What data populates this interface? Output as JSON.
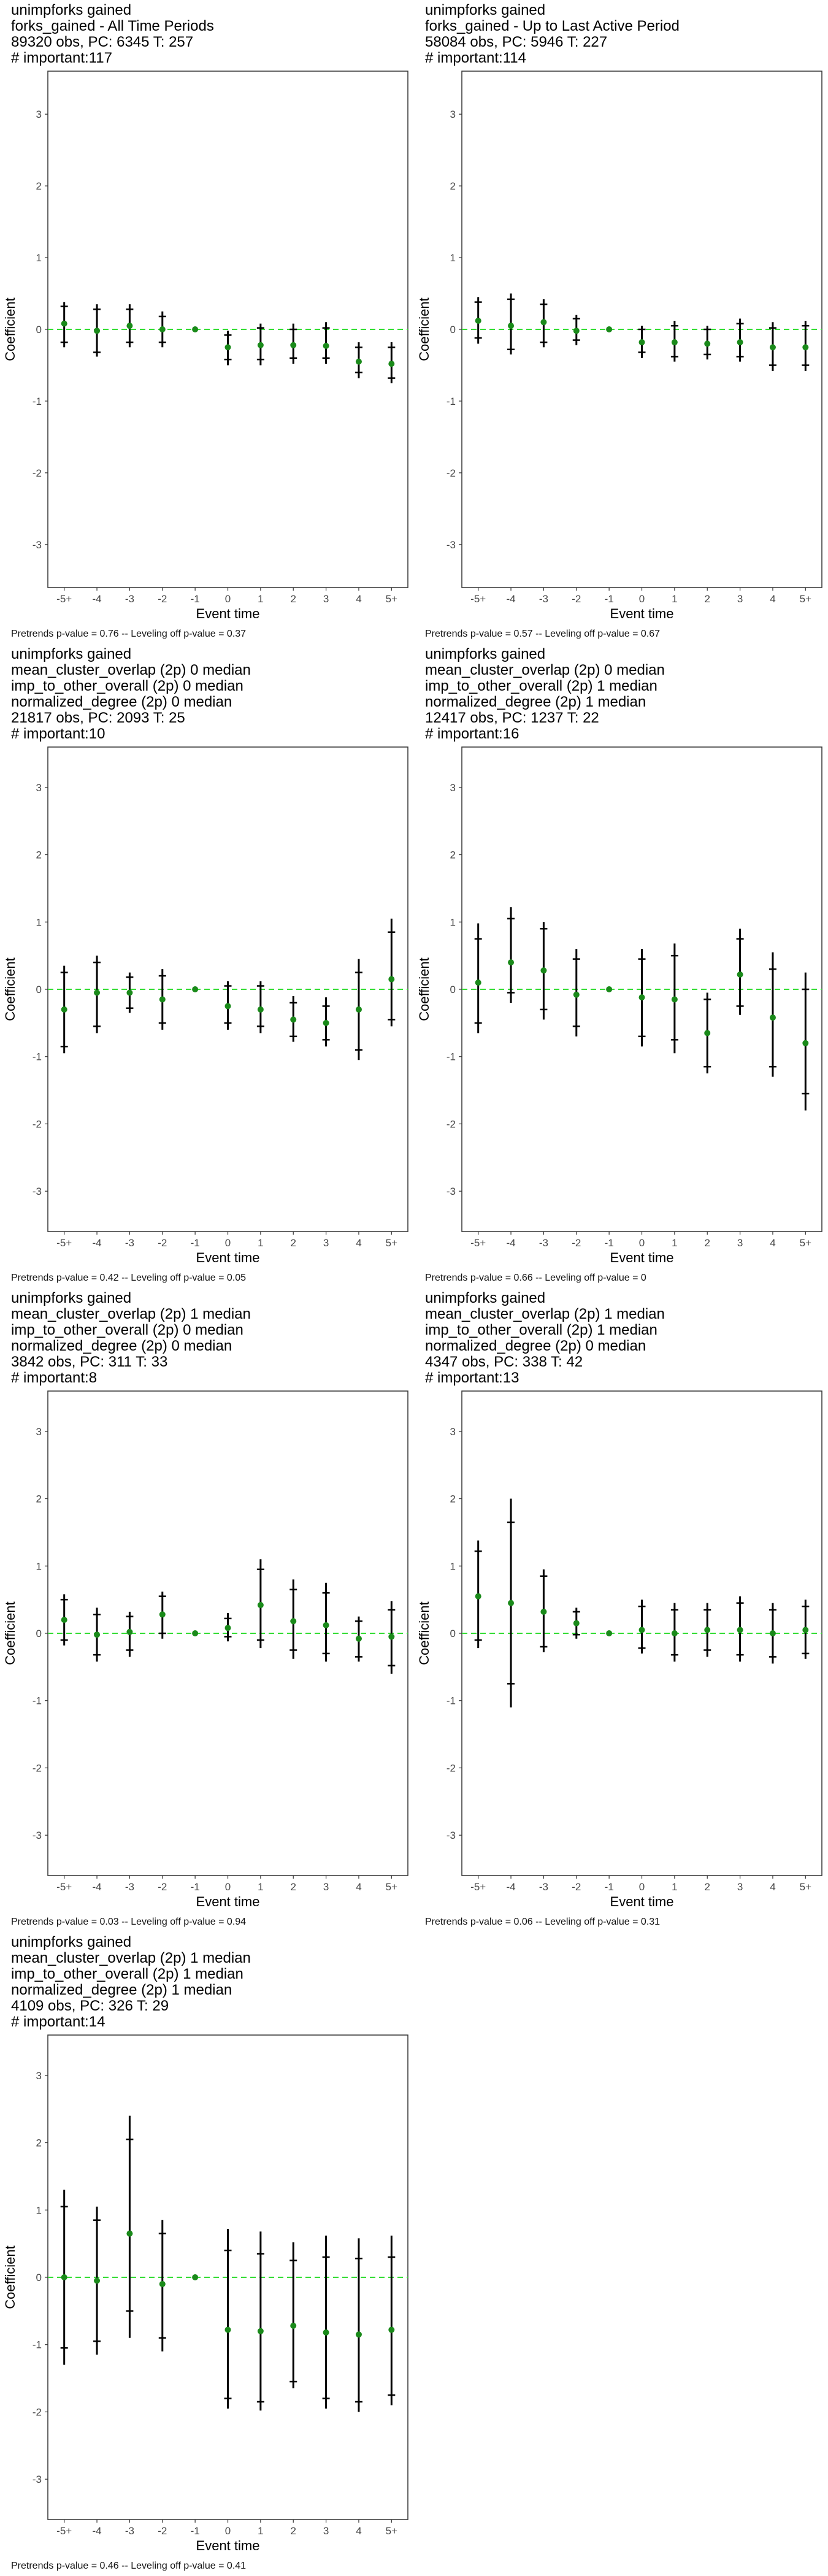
{
  "chart_data": [
    {
      "type": "scatter",
      "title_lines": [
        " unimpforks gained",
        "forks_gained - All Time Periods",
        "89320 obs, PC: 6345 T: 257",
        "# important:117"
      ],
      "footer": "Pretrends p-value = 0.76 -- Leveling off p-value = 0.37",
      "xlabel": "Event time",
      "ylabel": "Coefficient",
      "x_ticks": [
        "-5+",
        "-4",
        "-3",
        "-2",
        "-1",
        "0",
        "1",
        "2",
        "3",
        "4",
        "5+"
      ],
      "y_ticks": [
        "-3",
        "-2",
        "-1",
        "0",
        "1",
        "2",
        "3"
      ],
      "ylim": [
        -3.6,
        3.6
      ],
      "estimates": [
        0.08,
        -0.02,
        0.05,
        0.0,
        0.0,
        -0.25,
        -0.22,
        -0.22,
        -0.23,
        -0.45,
        -0.48
      ],
      "ci95": [
        [
          -0.25,
          0.38
        ],
        [
          -0.38,
          0.35
        ],
        [
          -0.25,
          0.35
        ],
        [
          -0.25,
          0.25
        ],
        [
          0,
          0
        ],
        [
          -0.5,
          -0.02
        ],
        [
          -0.5,
          0.08
        ],
        [
          -0.48,
          0.08
        ],
        [
          -0.48,
          0.1
        ],
        [
          -0.68,
          -0.18
        ],
        [
          -0.75,
          -0.18
        ]
      ],
      "ci90": [
        [
          -0.18,
          0.32
        ],
        [
          -0.32,
          0.28
        ],
        [
          -0.18,
          0.28
        ],
        [
          -0.18,
          0.18
        ],
        [
          0,
          0
        ],
        [
          -0.42,
          -0.08
        ],
        [
          -0.42,
          0.02
        ],
        [
          -0.4,
          0.0
        ],
        [
          -0.4,
          0.02
        ],
        [
          -0.6,
          -0.25
        ],
        [
          -0.68,
          -0.25
        ]
      ]
    },
    {
      "type": "scatter",
      "title_lines": [
        " unimpforks gained",
        "forks_gained - Up to Last Active Period",
        "58084 obs, PC: 5946 T: 227",
        "# important:114"
      ],
      "footer": "Pretrends p-value = 0.57 -- Leveling off p-value = 0.67",
      "xlabel": "Event time",
      "ylabel": "Coefficient",
      "x_ticks": [
        "-5+",
        "-4",
        "-3",
        "-2",
        "-1",
        "0",
        "1",
        "2",
        "3",
        "4",
        "5+"
      ],
      "y_ticks": [
        "-3",
        "-2",
        "-1",
        "0",
        "1",
        "2",
        "3"
      ],
      "ylim": [
        -3.6,
        3.6
      ],
      "estimates": [
        0.12,
        0.05,
        0.1,
        -0.02,
        0.0,
        -0.18,
        -0.18,
        -0.2,
        -0.18,
        -0.25,
        -0.25
      ],
      "ci95": [
        [
          -0.2,
          0.45
        ],
        [
          -0.35,
          0.5
        ],
        [
          -0.25,
          0.42
        ],
        [
          -0.22,
          0.2
        ],
        [
          0,
          0
        ],
        [
          -0.4,
          0.05
        ],
        [
          -0.45,
          0.12
        ],
        [
          -0.42,
          0.05
        ],
        [
          -0.45,
          0.15
        ],
        [
          -0.58,
          0.1
        ],
        [
          -0.58,
          0.12
        ]
      ],
      "ci90": [
        [
          -0.12,
          0.38
        ],
        [
          -0.28,
          0.42
        ],
        [
          -0.18,
          0.35
        ],
        [
          -0.15,
          0.15
        ],
        [
          0,
          0
        ],
        [
          -0.32,
          0.0
        ],
        [
          -0.38,
          0.05
        ],
        [
          -0.35,
          0.0
        ],
        [
          -0.38,
          0.08
        ],
        [
          -0.5,
          0.02
        ],
        [
          -0.5,
          0.05
        ]
      ]
    },
    {
      "type": "scatter",
      "title_lines": [
        " unimpforks gained",
        "mean_cluster_overlap (2p) 0 median",
        "imp_to_other_overall (2p) 0 median",
        "normalized_degree (2p) 0 median",
        "21817 obs, PC: 2093 T: 25",
        "# important:10"
      ],
      "footer": "Pretrends p-value = 0.42 -- Leveling off p-value = 0.05",
      "xlabel": "Event time",
      "ylabel": "Coefficient",
      "x_ticks": [
        "-5+",
        "-4",
        "-3",
        "-2",
        "-1",
        "0",
        "1",
        "2",
        "3",
        "4",
        "5+"
      ],
      "y_ticks": [
        "-3",
        "-2",
        "-1",
        "0",
        "1",
        "2",
        "3"
      ],
      "ylim": [
        -3.6,
        3.6
      ],
      "estimates": [
        -0.3,
        -0.05,
        -0.05,
        -0.15,
        0.0,
        -0.25,
        -0.3,
        -0.45,
        -0.5,
        -0.3,
        0.15
      ],
      "ci95": [
        [
          -0.95,
          0.35
        ],
        [
          -0.65,
          0.5
        ],
        [
          -0.35,
          0.25
        ],
        [
          -0.6,
          0.3
        ],
        [
          0,
          0
        ],
        [
          -0.6,
          0.12
        ],
        [
          -0.65,
          0.12
        ],
        [
          -0.78,
          -0.1
        ],
        [
          -0.85,
          -0.12
        ],
        [
          -1.05,
          0.45
        ],
        [
          -0.55,
          1.05
        ]
      ],
      "ci90": [
        [
          -0.85,
          0.25
        ],
        [
          -0.55,
          0.4
        ],
        [
          -0.28,
          0.18
        ],
        [
          -0.5,
          0.2
        ],
        [
          0,
          0
        ],
        [
          -0.5,
          0.05
        ],
        [
          -0.55,
          0.05
        ],
        [
          -0.7,
          -0.2
        ],
        [
          -0.75,
          -0.25
        ],
        [
          -0.9,
          0.25
        ],
        [
          -0.45,
          0.85
        ]
      ]
    },
    {
      "type": "scatter",
      "title_lines": [
        " unimpforks gained",
        "mean_cluster_overlap (2p) 0 median",
        "imp_to_other_overall (2p) 1 median",
        "normalized_degree (2p) 1 median",
        "12417 obs, PC: 1237 T: 22",
        "# important:16"
      ],
      "footer": "Pretrends p-value = 0.66 -- Leveling off p-value = 0",
      "xlabel": "Event time",
      "ylabel": "Coefficient",
      "x_ticks": [
        "-5+",
        "-4",
        "-3",
        "-2",
        "-1",
        "0",
        "1",
        "2",
        "3",
        "4",
        "5+"
      ],
      "y_ticks": [
        "-3",
        "-2",
        "-1",
        "0",
        "1",
        "2",
        "3"
      ],
      "ylim": [
        -3.6,
        3.6
      ],
      "estimates": [
        0.1,
        0.4,
        0.28,
        -0.08,
        0.0,
        -0.12,
        -0.15,
        -0.65,
        0.22,
        -0.42,
        -0.8
      ],
      "ci95": [
        [
          -0.65,
          0.98
        ],
        [
          -0.2,
          1.22
        ],
        [
          -0.45,
          1.0
        ],
        [
          -0.7,
          0.6
        ],
        [
          0,
          0
        ],
        [
          -0.85,
          0.6
        ],
        [
          -0.95,
          0.68
        ],
        [
          -1.25,
          -0.05
        ],
        [
          -0.38,
          0.9
        ],
        [
          -1.3,
          0.55
        ],
        [
          -1.8,
          0.25
        ]
      ],
      "ci90": [
        [
          -0.5,
          0.75
        ],
        [
          -0.05,
          1.05
        ],
        [
          -0.3,
          0.9
        ],
        [
          -0.55,
          0.45
        ],
        [
          0,
          0
        ],
        [
          -0.7,
          0.45
        ],
        [
          -0.75,
          0.5
        ],
        [
          -1.15,
          -0.15
        ],
        [
          -0.25,
          0.75
        ],
        [
          -1.15,
          0.3
        ],
        [
          -1.55,
          0.0
        ]
      ]
    },
    {
      "type": "scatter",
      "title_lines": [
        " unimpforks gained",
        "mean_cluster_overlap (2p) 1 median",
        "imp_to_other_overall (2p) 0 median",
        "normalized_degree (2p) 0 median",
        "3842 obs, PC: 311 T: 33",
        "# important:8"
      ],
      "footer": "Pretrends p-value = 0.03 -- Leveling off p-value = 0.94",
      "xlabel": "Event time",
      "ylabel": "Coefficient",
      "x_ticks": [
        "-5+",
        "-4",
        "-3",
        "-2",
        "-1",
        "0",
        "1",
        "2",
        "3",
        "4",
        "5+"
      ],
      "y_ticks": [
        "-3",
        "-2",
        "-1",
        "0",
        "1",
        "2",
        "3"
      ],
      "ylim": [
        -3.6,
        3.6
      ],
      "estimates": [
        0.2,
        -0.02,
        0.02,
        0.28,
        0.0,
        0.08,
        0.42,
        0.18,
        0.12,
        -0.08,
        -0.05
      ],
      "ci95": [
        [
          -0.18,
          0.58
        ],
        [
          -0.42,
          0.38
        ],
        [
          -0.35,
          0.32
        ],
        [
          -0.08,
          0.62
        ],
        [
          0,
          0
        ],
        [
          -0.12,
          0.3
        ],
        [
          -0.22,
          1.1
        ],
        [
          -0.38,
          0.8
        ],
        [
          -0.42,
          0.75
        ],
        [
          -0.42,
          0.25
        ],
        [
          -0.6,
          0.48
        ]
      ],
      "ci90": [
        [
          -0.1,
          0.5
        ],
        [
          -0.32,
          0.28
        ],
        [
          -0.25,
          0.25
        ],
        [
          0.0,
          0.55
        ],
        [
          0,
          0
        ],
        [
          -0.05,
          0.22
        ],
        [
          -0.1,
          0.95
        ],
        [
          -0.25,
          0.65
        ],
        [
          -0.3,
          0.6
        ],
        [
          -0.35,
          0.18
        ],
        [
          -0.48,
          0.35
        ]
      ]
    },
    {
      "type": "scatter",
      "title_lines": [
        " unimpforks gained",
        "mean_cluster_overlap (2p) 1 median",
        "imp_to_other_overall (2p) 1 median",
        "normalized_degree (2p) 0 median",
        "4347 obs, PC: 338 T: 42",
        "# important:13"
      ],
      "footer": "Pretrends p-value = 0.06 -- Leveling off p-value = 0.31",
      "xlabel": "Event time",
      "ylabel": "Coefficient",
      "x_ticks": [
        "-5+",
        "-4",
        "-3",
        "-2",
        "-1",
        "0",
        "1",
        "2",
        "3",
        "4",
        "5+"
      ],
      "y_ticks": [
        "-3",
        "-2",
        "-1",
        "0",
        "1",
        "2",
        "3"
      ],
      "ylim": [
        -3.6,
        3.6
      ],
      "estimates": [
        0.55,
        0.45,
        0.32,
        0.15,
        0.0,
        0.05,
        0.0,
        0.05,
        0.05,
        0.0,
        0.05
      ],
      "ci95": [
        [
          -0.22,
          1.38
        ],
        [
          -1.1,
          2.0
        ],
        [
          -0.28,
          0.95
        ],
        [
          -0.08,
          0.38
        ],
        [
          0,
          0
        ],
        [
          -0.3,
          0.5
        ],
        [
          -0.42,
          0.45
        ],
        [
          -0.35,
          0.45
        ],
        [
          -0.42,
          0.55
        ],
        [
          -0.45,
          0.45
        ],
        [
          -0.38,
          0.5
        ]
      ],
      "ci90": [
        [
          -0.1,
          1.22
        ],
        [
          -0.75,
          1.65
        ],
        [
          -0.2,
          0.85
        ],
        [
          -0.02,
          0.32
        ],
        [
          0,
          0
        ],
        [
          -0.22,
          0.4
        ],
        [
          -0.32,
          0.35
        ],
        [
          -0.25,
          0.35
        ],
        [
          -0.32,
          0.45
        ],
        [
          -0.35,
          0.35
        ],
        [
          -0.3,
          0.4
        ]
      ]
    },
    {
      "type": "scatter",
      "title_lines": [
        " unimpforks gained",
        "mean_cluster_overlap (2p) 1 median",
        "imp_to_other_overall (2p) 1 median",
        "normalized_degree (2p) 1 median",
        "4109 obs, PC: 326 T: 29",
        "# important:14"
      ],
      "footer": "Pretrends p-value = 0.46 -- Leveling off p-value = 0.41",
      "xlabel": "Event time",
      "ylabel": "Coefficient",
      "x_ticks": [
        "-5+",
        "-4",
        "-3",
        "-2",
        "-1",
        "0",
        "1",
        "2",
        "3",
        "4",
        "5+"
      ],
      "y_ticks": [
        "-3",
        "-2",
        "-1",
        "0",
        "1",
        "2",
        "3"
      ],
      "ylim": [
        -3.6,
        3.6
      ],
      "estimates": [
        0.0,
        -0.05,
        0.65,
        -0.1,
        0.0,
        -0.78,
        -0.8,
        -0.72,
        -0.82,
        -0.85,
        -0.78
      ],
      "ci95": [
        [
          -1.3,
          1.3
        ],
        [
          -1.15,
          1.05
        ],
        [
          -0.9,
          2.4
        ],
        [
          -1.1,
          0.85
        ],
        [
          0,
          0
        ],
        [
          -1.95,
          0.72
        ],
        [
          -1.98,
          0.68
        ],
        [
          -1.65,
          0.52
        ],
        [
          -1.95,
          0.62
        ],
        [
          -2.0,
          0.58
        ],
        [
          -1.9,
          0.62
        ]
      ],
      "ci90": [
        [
          -1.05,
          1.05
        ],
        [
          -0.95,
          0.85
        ],
        [
          -0.5,
          2.05
        ],
        [
          -0.9,
          0.65
        ],
        [
          0,
          0
        ],
        [
          -1.8,
          0.4
        ],
        [
          -1.85,
          0.35
        ],
        [
          -1.55,
          0.25
        ],
        [
          -1.8,
          0.3
        ],
        [
          -1.85,
          0.28
        ],
        [
          -1.75,
          0.3
        ]
      ]
    }
  ]
}
